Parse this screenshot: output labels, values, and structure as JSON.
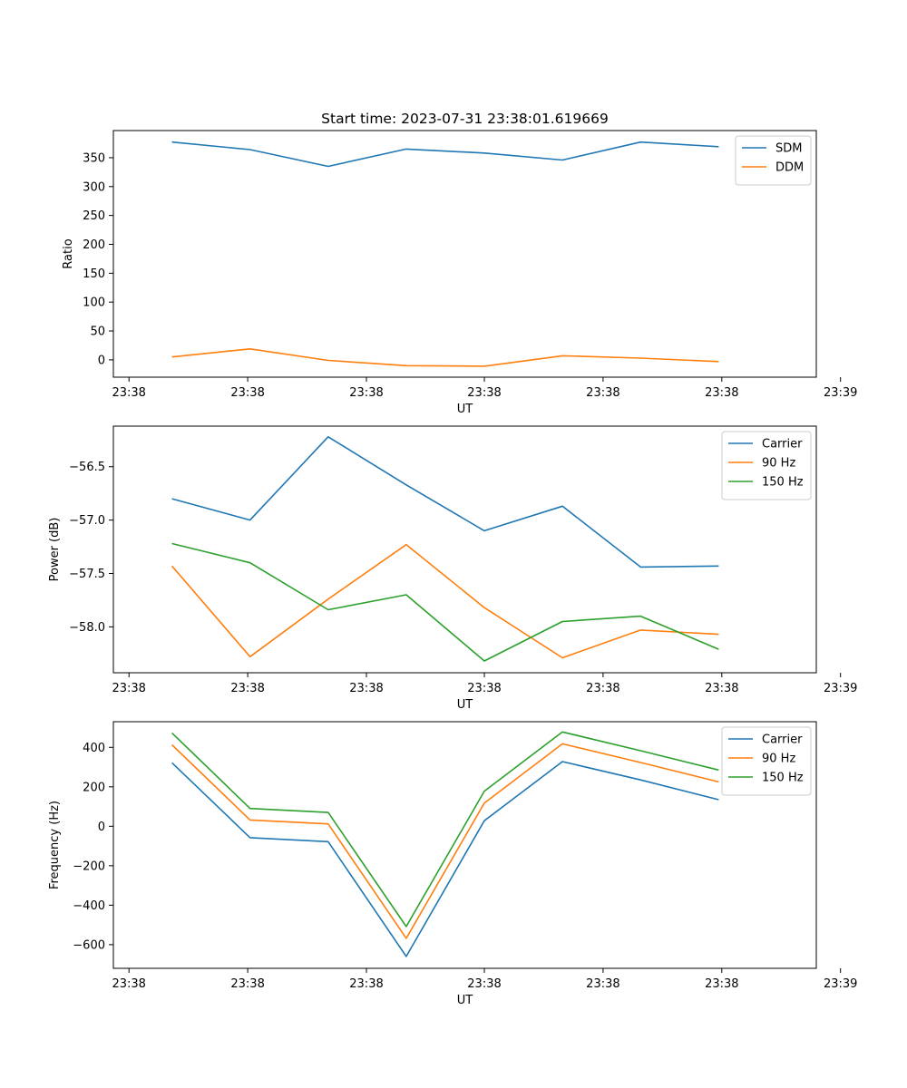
{
  "figure_title": "Start time: 2023-07-31 23:38:01.619669",
  "chart_data": [
    {
      "type": "line",
      "title": "Start time: 2023-07-31 23:38:01.619669",
      "xlabel": "UT",
      "ylabel": "Ratio",
      "x": [
        1,
        2,
        3,
        4,
        5,
        6,
        7,
        8
      ],
      "xlim": [
        0.25,
        9.25
      ],
      "x_ticks": [
        0.45,
        1.97,
        3.49,
        5.0,
        6.52,
        8.04,
        9.56
      ],
      "x_tick_labels": [
        "23:38",
        "23:38",
        "23:38",
        "23:38",
        "23:38",
        "23:38",
        "23:39"
      ],
      "ylim": [
        -30,
        397
      ],
      "y_ticks": [
        0,
        50,
        100,
        150,
        200,
        250,
        300,
        350
      ],
      "y_tick_labels": [
        "0",
        "50",
        "100",
        "150",
        "200",
        "250",
        "300",
        "350"
      ],
      "legend_position": "top-right",
      "series": [
        {
          "name": "SDM",
          "color": "#1f77b4",
          "values": [
            377,
            364,
            335,
            365,
            358,
            346,
            377,
            369
          ]
        },
        {
          "name": "DDM",
          "color": "#ff7f0e",
          "values": [
            5,
            19,
            -1,
            -10,
            -11,
            7,
            3,
            -3
          ]
        }
      ]
    },
    {
      "type": "line",
      "title": "",
      "xlabel": "UT",
      "ylabel": "Power (dB)",
      "x": [
        1,
        2,
        3,
        4,
        5,
        6,
        7,
        8
      ],
      "xlim": [
        0.25,
        9.25
      ],
      "x_ticks": [
        0.45,
        1.97,
        3.49,
        5.0,
        6.52,
        8.04,
        9.56
      ],
      "x_tick_labels": [
        "23:38",
        "23:38",
        "23:38",
        "23:38",
        "23:38",
        "23:38",
        "23:39"
      ],
      "ylim": [
        -58.43,
        -56.12
      ],
      "y_ticks": [
        -58.0,
        -57.5,
        -57.0,
        -56.5
      ],
      "y_tick_labels": [
        "−58.0",
        "−57.5",
        "−57.0",
        "−56.5"
      ],
      "legend_position": "top-right",
      "series": [
        {
          "name": "Carrier",
          "color": "#1f77b4",
          "values": [
            -56.8,
            -57.0,
            -56.22,
            -56.67,
            -57.1,
            -56.87,
            -57.44,
            -57.43
          ]
        },
        {
          "name": "90 Hz",
          "color": "#ff7f0e",
          "values": [
            -57.43,
            -58.28,
            -57.74,
            -57.23,
            -57.82,
            -58.29,
            -58.03,
            -58.07
          ]
        },
        {
          "name": "150 Hz",
          "color": "#2ca02c",
          "values": [
            -57.22,
            -57.4,
            -57.84,
            -57.7,
            -58.32,
            -57.95,
            -57.9,
            -58.21
          ]
        }
      ]
    },
    {
      "type": "line",
      "title": "",
      "xlabel": "UT",
      "ylabel": "Frequency (Hz)",
      "x": [
        1,
        2,
        3,
        4,
        5,
        6,
        7,
        8
      ],
      "xlim": [
        0.25,
        9.25
      ],
      "x_ticks": [
        0.45,
        1.97,
        3.49,
        5.0,
        6.52,
        8.04,
        9.56
      ],
      "x_tick_labels": [
        "23:38",
        "23:38",
        "23:38",
        "23:38",
        "23:38",
        "23:38",
        "23:39"
      ],
      "ylim": [
        -720,
        530
      ],
      "y_ticks": [
        -600,
        -400,
        -200,
        0,
        200,
        400
      ],
      "y_tick_labels": [
        "−600",
        "−400",
        "−200",
        "0",
        "200",
        "400"
      ],
      "legend_position": "top-right",
      "series": [
        {
          "name": "Carrier",
          "color": "#1f77b4",
          "values": [
            322,
            -58,
            -78,
            -660,
            28,
            328,
            235,
            135
          ]
        },
        {
          "name": "90 Hz",
          "color": "#ff7f0e",
          "values": [
            413,
            32,
            12,
            -568,
            118,
            418,
            323,
            225
          ]
        },
        {
          "name": "150 Hz",
          "color": "#2ca02c",
          "values": [
            473,
            90,
            70,
            -508,
            178,
            478,
            383,
            285
          ]
        }
      ]
    }
  ]
}
